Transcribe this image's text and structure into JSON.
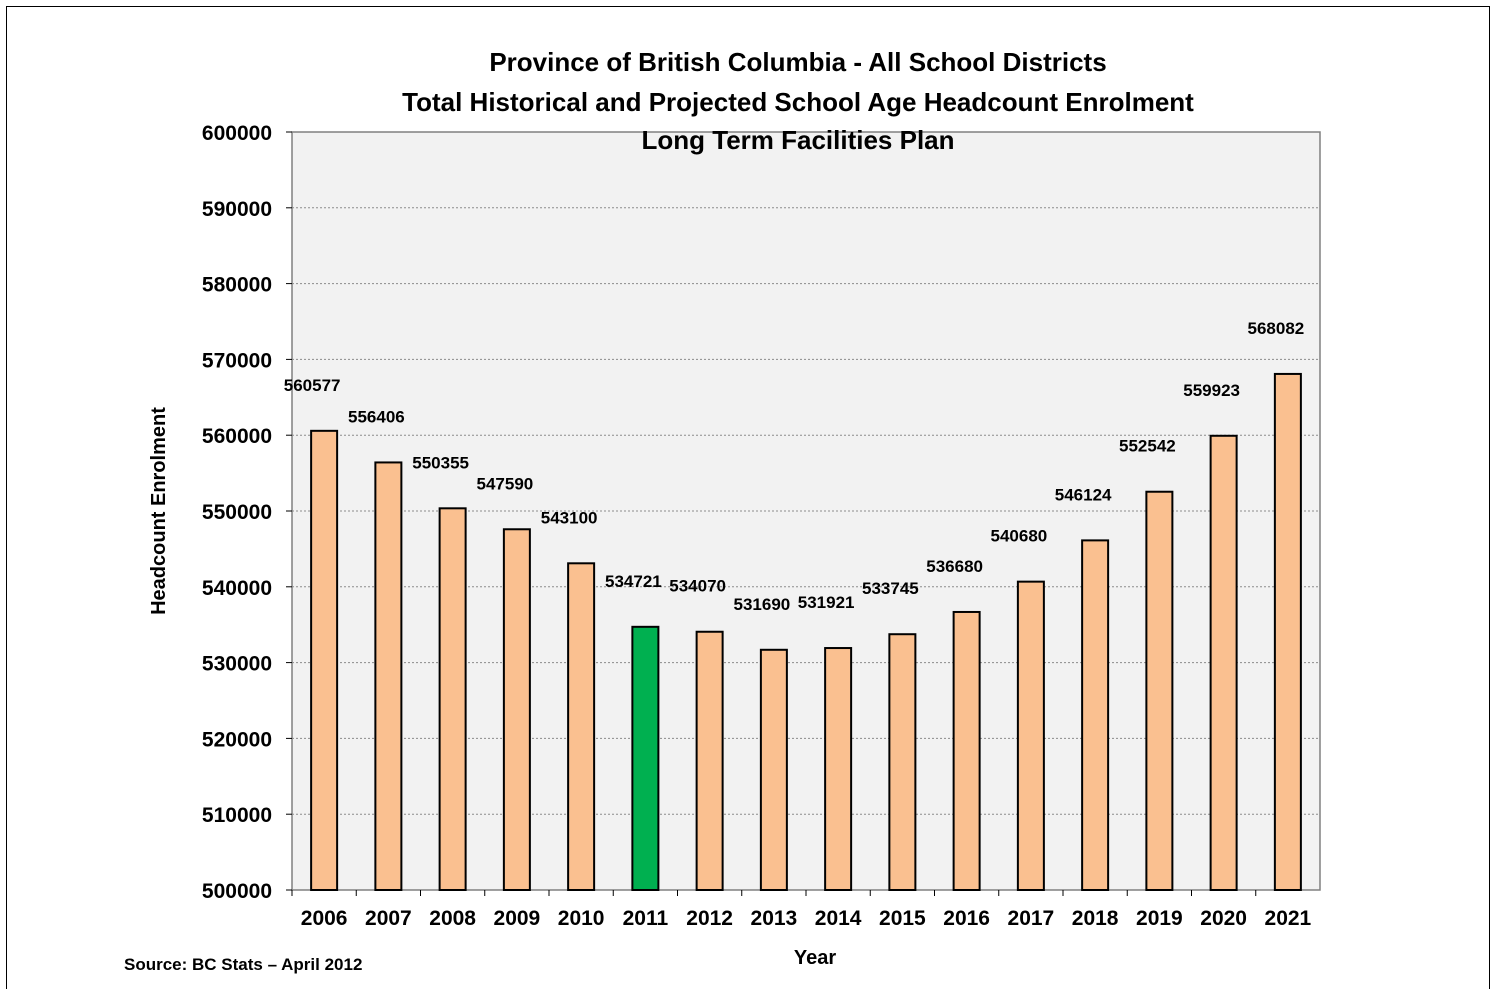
{
  "chart_data": {
    "type": "bar",
    "title": [
      "Province of British Columbia - All School Districts",
      "Total Historical and Projected School Age Headcount Enrolment",
      "Long Term Facilities Plan"
    ],
    "xlabel": "Year",
    "ylabel": "Headcount Enrolment",
    "categories": [
      "2006",
      "2007",
      "2008",
      "2009",
      "2010",
      "2011",
      "2012",
      "2013",
      "2014",
      "2015",
      "2016",
      "2017",
      "2018",
      "2019",
      "2020",
      "2021"
    ],
    "values": [
      560577,
      556406,
      550355,
      547590,
      543100,
      534721,
      534070,
      531690,
      531921,
      533745,
      536680,
      540680,
      546124,
      552542,
      559923,
      568082
    ],
    "data_labels": [
      "560577",
      "556406",
      "550355",
      "547590",
      "543100",
      "534721",
      "534070",
      "531690",
      "531921",
      "533745",
      "536680",
      "540680",
      "546124",
      "552542",
      "559923",
      "568082"
    ],
    "highlight_category": "2011",
    "ylim": [
      500000,
      600000
    ],
    "yticks": [
      "500000",
      "510000",
      "520000",
      "530000",
      "540000",
      "550000",
      "560000",
      "570000",
      "580000",
      "590000",
      "600000"
    ],
    "grid": "horizontal dashed",
    "legend": "none",
    "colors": {
      "bar": "#FAC090",
      "highlight": "#00B050",
      "plot_bg": "#F2F2F2",
      "bar_stroke": "#000000"
    },
    "source": "Source: BC Stats – April 2012"
  }
}
